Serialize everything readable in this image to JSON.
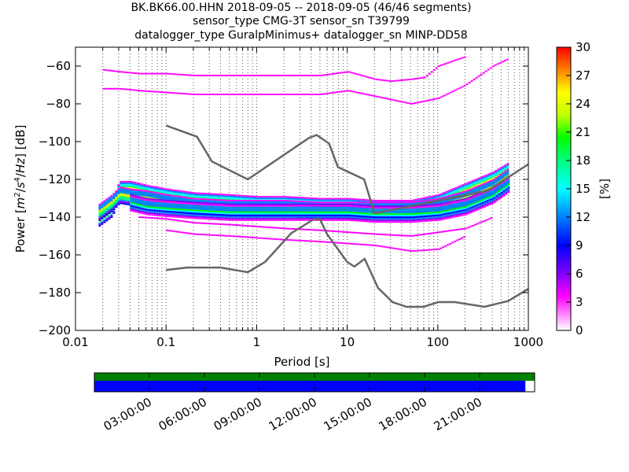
{
  "title": {
    "line1": "BK.BK66.00.HHN   2018-09-05 -- 2018-09-05  (46/46 segments)",
    "line2": "sensor_type CMG-3T sensor_sn T39799",
    "line3": "datalogger_type GuralpMinimus+ datalogger_sn MINP-DD58"
  },
  "chart_data": [
    {
      "type": "heatmap",
      "xlabel": "Period [s]",
      "ylabel": "Power [m²/s⁴/Hz] [dB]",
      "ylabel_parts": {
        "prefix": "Power [",
        "m": "m",
        "e1": "2",
        "slash1": "/",
        "s": "s",
        "e2": "4",
        "slash2": "/",
        "hz": "Hz",
        "suffix": "] [dB]"
      },
      "x_scale": "log",
      "xlim": [
        0.01,
        1000
      ],
      "ylim": [
        -200,
        -50
      ],
      "x_ticks": [
        {
          "value": 0.01,
          "label": "0.01"
        },
        {
          "value": 0.1,
          "label": "0.1"
        },
        {
          "value": 1,
          "label": "1"
        },
        {
          "value": 10,
          "label": "10"
        },
        {
          "value": 100,
          "label": "100"
        },
        {
          "value": 1000,
          "label": "1000"
        }
      ],
      "y_ticks": [
        -60,
        -80,
        -100,
        -120,
        -140,
        -160,
        -180,
        -200
      ],
      "y_tick_labels": [
        "−60",
        "−80",
        "−100",
        "−120",
        "−140",
        "−160",
        "−180",
        "−200"
      ],
      "grid": "dotted-vertical",
      "colorbar": {
        "label": "[%]",
        "range": [
          0,
          30
        ],
        "ticks": [
          0,
          3,
          6,
          9,
          12,
          15,
          18,
          21,
          24,
          27,
          30
        ],
        "colors": [
          "#ffffff",
          "#ff00ff",
          "#8000ff",
          "#0000ff",
          "#0080ff",
          "#00ffff",
          "#00ff80",
          "#00ff00",
          "#c0ff00",
          "#ffff00",
          "#ff8000",
          "#ff0000"
        ]
      },
      "series": [
        {
          "name": "",
          "role": "NLNM",
          "color": "#666666",
          "x": [
            0.1,
            0.17,
            0.4,
            0.8,
            1.24,
            2.4,
            4.3,
            5,
            6,
            10,
            12,
            15.6,
            21.9,
            31.6,
            45,
            70,
            101,
            154,
            328,
            600,
            1000
          ],
          "y": [
            -168,
            -166.7,
            -166.7,
            -169.2,
            -163.7,
            -148.6,
            -141.1,
            -141.1,
            -149,
            -163.8,
            -166.2,
            -162.1,
            -177.5,
            -185,
            -187.5,
            -187.5,
            -185,
            -185,
            -187.5,
            -184.4,
            -178
          ]
        },
        {
          "name": "",
          "role": "NHNM",
          "color": "#666666",
          "x": [
            0.1,
            0.22,
            0.32,
            0.8,
            3.8,
            4.6,
            6.3,
            7.9,
            15.4,
            20,
            354.8,
            1000
          ],
          "y": [
            -91.5,
            -97.4,
            -110.5,
            -120,
            -98,
            -96.5,
            -101,
            -113.5,
            -120,
            -138,
            -126,
            -112
          ]
        }
      ],
      "heatmap_bands": [
        {
          "x": [
            0.018,
            0.025,
            0.03,
            0.04,
            0.06,
            0.1,
            0.2,
            0.5,
            1,
            2,
            5,
            10,
            20,
            50,
            100,
            200,
            400,
            600
          ],
          "y": [
            -140,
            -135,
            -125,
            -125,
            -127,
            -129,
            -131,
            -132,
            -133,
            -133,
            -134,
            -134,
            -135,
            -135,
            -132,
            -126,
            -120,
            -115
          ]
        },
        {
          "x": [
            0.018,
            0.025,
            0.03,
            0.04,
            0.06,
            0.1,
            0.2,
            0.5,
            1,
            2,
            5,
            10,
            20,
            50,
            100,
            200,
            400,
            600
          ],
          "y": [
            -137,
            -132,
            -128,
            -129,
            -130,
            -132,
            -134,
            -135,
            -135,
            -135,
            -136,
            -136,
            -136,
            -136,
            -134,
            -130,
            -124,
            -118
          ]
        },
        {
          "x": [
            0.04,
            0.06,
            0.1,
            0.2,
            0.5,
            1,
            2,
            5,
            10,
            20,
            50,
            100,
            200,
            400,
            600
          ],
          "y": [
            -132,
            -134,
            -135,
            -136,
            -137,
            -137,
            -137,
            -137,
            -137,
            -138,
            -138,
            -137,
            -134,
            -128,
            -122
          ]
        },
        {
          "x": [
            0.02,
            0.03,
            0.05,
            0.1,
            0.2,
            0.5,
            1,
            2,
            5,
            10,
            20,
            50,
            100,
            200,
            400,
            600
          ],
          "y": [
            -72,
            -72,
            -73,
            -74,
            -75,
            -75,
            -75,
            -75,
            -75,
            -73,
            -76,
            -80,
            -77,
            -70,
            -60,
            -56
          ]
        },
        {
          "x": [
            0.02,
            0.03,
            0.05,
            0.1,
            0.2,
            0.5,
            1,
            2,
            5,
            10,
            20,
            30,
            50,
            70,
            100,
            150,
            200
          ],
          "y": [
            -62,
            -63,
            -64,
            -64,
            -65,
            -65,
            -65,
            -65,
            -65,
            -63,
            -67,
            -68,
            -67,
            -66,
            -60,
            -57,
            -55
          ]
        },
        {
          "x": [
            0.05,
            0.1,
            0.2,
            0.5,
            1,
            2,
            5,
            10,
            20,
            50,
            100,
            200,
            400
          ],
          "y": [
            -140,
            -141,
            -143,
            -144,
            -145,
            -146,
            -147,
            -148,
            -149,
            -150,
            -148,
            -146,
            -140
          ]
        },
        {
          "x": [
            0.1,
            0.2,
            0.5,
            1,
            2,
            5,
            10,
            20,
            50,
            100,
            200
          ],
          "y": [
            -147,
            -149,
            -150,
            -151,
            -152,
            -153,
            -154,
            -155,
            -158,
            -157,
            -150
          ]
        }
      ]
    },
    {
      "type": "timeline",
      "x_ticks": [
        "03:00:00",
        "06:00:00",
        "09:00:00",
        "12:00:00",
        "15:00:00",
        "18:00:00",
        "21:00:00"
      ],
      "coverage_fraction": 0.979,
      "top_color": "#008000",
      "bottom_color": "#0000ff"
    }
  ]
}
